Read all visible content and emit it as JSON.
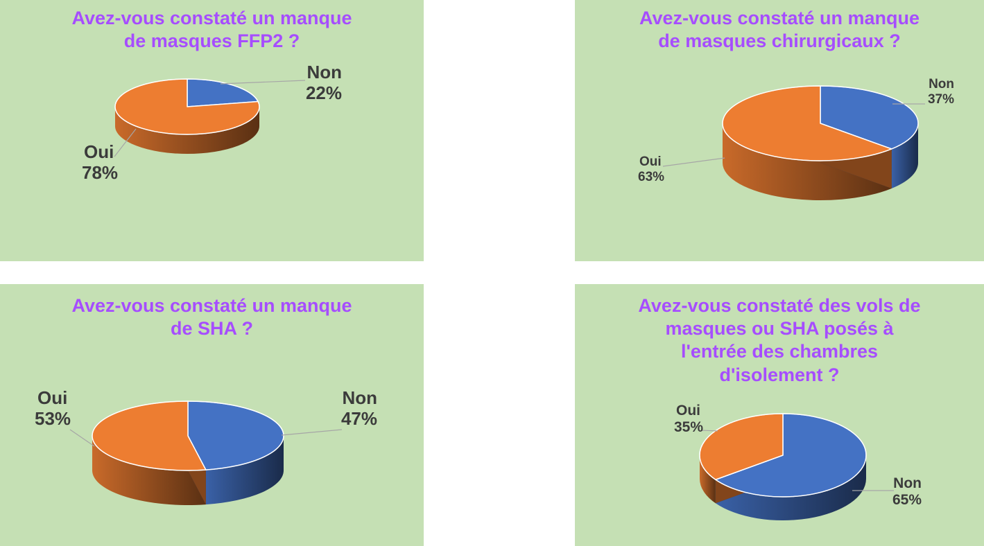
{
  "colors": {
    "background": "#c5e0b4",
    "title": "#a64dff",
    "non": "#4472c4",
    "oui": "#ed7d31",
    "label": "#3b3b3b"
  },
  "chart_data": [
    {
      "type": "pie",
      "title": "Avez-vous constaté un manque de masques FFP2 ?",
      "title_lines": [
        "Avez-vous constaté un manque",
        "de masques FFP2 ?"
      ],
      "slices": [
        {
          "name": "Non",
          "value": 22,
          "label": "22%",
          "color": "#4472c4"
        },
        {
          "name": "Oui",
          "value": 78,
          "label": "78%",
          "color": "#ed7d31"
        }
      ]
    },
    {
      "type": "pie",
      "title": "Avez-vous constaté un manque de masques chirurgicaux ?",
      "title_lines": [
        "Avez-vous constaté un manque",
        "de masques chirurgicaux ?"
      ],
      "slices": [
        {
          "name": "Non",
          "value": 37,
          "label": "37%",
          "color": "#4472c4"
        },
        {
          "name": "Oui",
          "value": 63,
          "label": "63%",
          "color": "#ed7d31"
        }
      ]
    },
    {
      "type": "pie",
      "title": "Avez-vous constaté un manque de SHA ?",
      "title_lines": [
        "Avez-vous constaté un manque",
        "de SHA ?"
      ],
      "slices": [
        {
          "name": "Non",
          "value": 47,
          "label": "47%",
          "color": "#4472c4"
        },
        {
          "name": "Oui",
          "value": 53,
          "label": "53%",
          "color": "#ed7d31"
        }
      ]
    },
    {
      "type": "pie",
      "title": "Avez-vous constaté des vols de masques ou SHA posés à l'entrée des chambres d'isolement ?",
      "title_lines": [
        "Avez-vous constaté des vols de",
        "masques ou SHA posés à",
        "l'entrée des chambres",
        "d'isolement ?"
      ],
      "slices": [
        {
          "name": "Non",
          "value": 65,
          "label": "65%",
          "color": "#4472c4"
        },
        {
          "name": "Oui",
          "value": 35,
          "label": "35%",
          "color": "#ed7d31"
        }
      ]
    }
  ]
}
